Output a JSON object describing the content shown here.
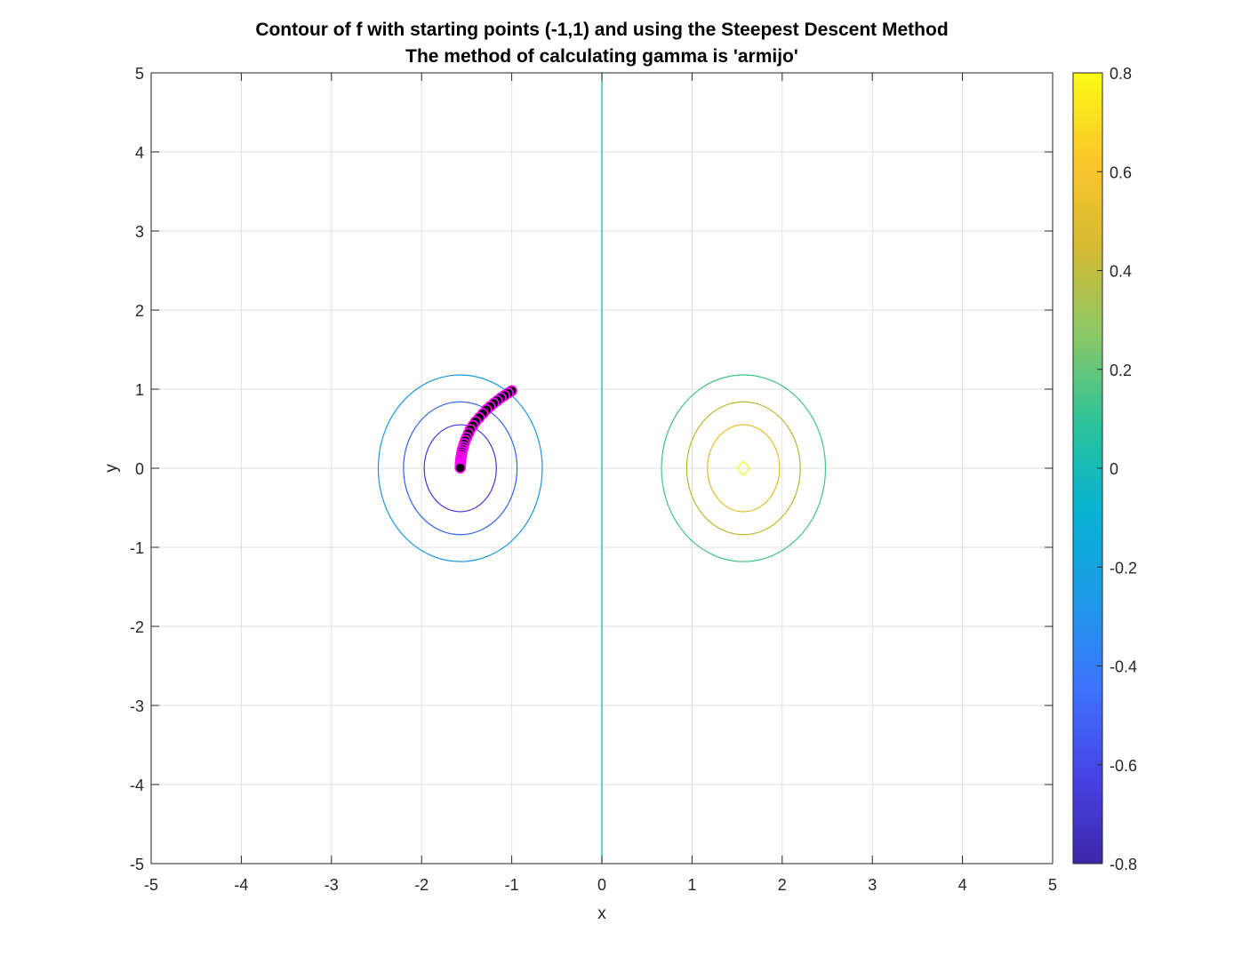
{
  "chart_data": {
    "type": "contour",
    "title": "Contour of f with starting points (-1,1) and using the Steepest Descent Method",
    "subtitle": "The method of calculating gamma is 'armijo'",
    "xlabel": "x",
    "ylabel": "y",
    "xlim": [
      -5,
      5
    ],
    "ylim": [
      -5,
      5
    ],
    "xticks": [
      "-5",
      "-4",
      "-3",
      "-2",
      "-1",
      "0",
      "1",
      "2",
      "3",
      "4",
      "5"
    ],
    "yticks": [
      "-5",
      "-4",
      "-3",
      "-2",
      "-1",
      "0",
      "1",
      "2",
      "3",
      "4",
      "5"
    ],
    "grid": true,
    "colorbar": {
      "limits": [
        -0.8,
        0.8
      ],
      "ticks": [
        "-0.8",
        "-0.6",
        "-0.4",
        "-0.2",
        "0",
        "0.2",
        "0.4",
        "0.6",
        "0.8"
      ],
      "colormap": [
        "#3e26a8",
        "#4743e6",
        "#3d74fe",
        "#1e99e7",
        "#05b3d2",
        "#2bc39a",
        "#88c867",
        "#d5ba34",
        "#fbc629",
        "#f9fb15"
      ]
    },
    "contours": [
      {
        "level": -0.6,
        "color": "#4333d8",
        "cx": -1.5708,
        "cy": 0,
        "rx": 0.4,
        "ry": 0.55
      },
      {
        "level": -0.4,
        "color": "#2f62ea",
        "cx": -1.5708,
        "cy": 0,
        "rx": 0.63,
        "ry": 0.84
      },
      {
        "level": -0.2,
        "color": "#1a96e0",
        "cx": -1.5708,
        "cy": 0,
        "rx": 0.91,
        "ry": 1.18
      },
      {
        "level": 0.0,
        "color": "#06b8c3",
        "vertical_x": 0
      },
      {
        "level": 0.2,
        "color": "#42c47c",
        "cx": 1.5708,
        "cy": 0,
        "rx": 0.91,
        "ry": 1.18
      },
      {
        "level": 0.4,
        "color": "#b9b52e",
        "cx": 1.5708,
        "cy": 0,
        "rx": 0.63,
        "ry": 0.84
      },
      {
        "level": 0.6,
        "color": "#e5bb2a",
        "cx": 1.5708,
        "cy": 0,
        "rx": 0.4,
        "ry": 0.55
      },
      {
        "level": 0.8,
        "color": "#f2f21c",
        "cx": 1.5708,
        "cy": 0,
        "rx": 0.07,
        "ry": 0.09
      }
    ],
    "path": {
      "start": [
        -1,
        1
      ],
      "marker_fill": "#000000",
      "marker_edge": "#ff00ff",
      "x": [
        -1.0,
        -1.04,
        -1.08,
        -1.12,
        -1.16,
        -1.2,
        -1.24,
        -1.28,
        -1.32,
        -1.36,
        -1.4,
        -1.43,
        -1.46,
        -1.48,
        -1.5,
        -1.515,
        -1.527,
        -1.537,
        -1.545,
        -1.551,
        -1.556,
        -1.56,
        -1.563,
        -1.565,
        -1.567,
        -1.568,
        -1.569,
        -1.57,
        -1.5705,
        -1.5708
      ],
      "y": [
        0.98,
        0.95,
        0.92,
        0.89,
        0.855,
        0.82,
        0.78,
        0.74,
        0.69,
        0.64,
        0.59,
        0.54,
        0.49,
        0.44,
        0.39,
        0.35,
        0.31,
        0.27,
        0.24,
        0.21,
        0.18,
        0.15,
        0.13,
        0.11,
        0.09,
        0.07,
        0.05,
        0.035,
        0.02,
        0.005
      ]
    }
  }
}
